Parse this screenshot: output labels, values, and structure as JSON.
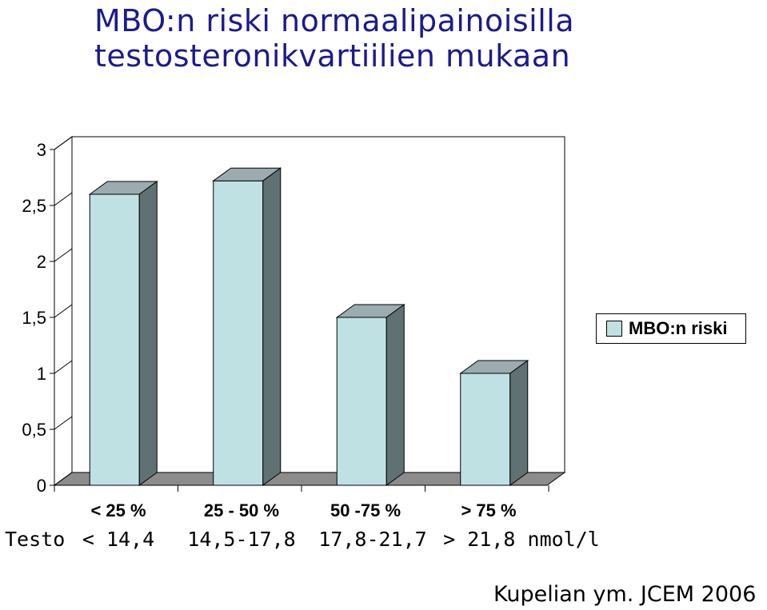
{
  "title": {
    "line1": "MBO:n riski normaalipainoisilla",
    "line2": "testosteronikvartiilien mukaan"
  },
  "legend": {
    "label": "MBO:n riski"
  },
  "chart_data": {
    "type": "bar",
    "title": "MBO:n riski normaalipainoisilla testosteronikvartiilien mukaan",
    "categories": [
      "< 25 %",
      "25 - 50 %",
      "50 -75 %",
      "> 75 %"
    ],
    "series": [
      {
        "name": "MBO:n riski",
        "values": [
          2.6,
          2.72,
          1.5,
          1.0
        ],
        "color": "#bfe1e3"
      }
    ],
    "yticks": [
      "0",
      "0,5",
      "1",
      "1,5",
      "2",
      "2,5",
      "3"
    ],
    "ylim": [
      0,
      3
    ],
    "grid": false,
    "legend_position": "right"
  },
  "x_secondary": {
    "title": "Testo",
    "labels": [
      "< 14,4",
      "14,5-17,8",
      "17,8-21,7",
      "> 21,8 nmol/l"
    ]
  },
  "source": "Kupelian ym. JCEM 2006"
}
